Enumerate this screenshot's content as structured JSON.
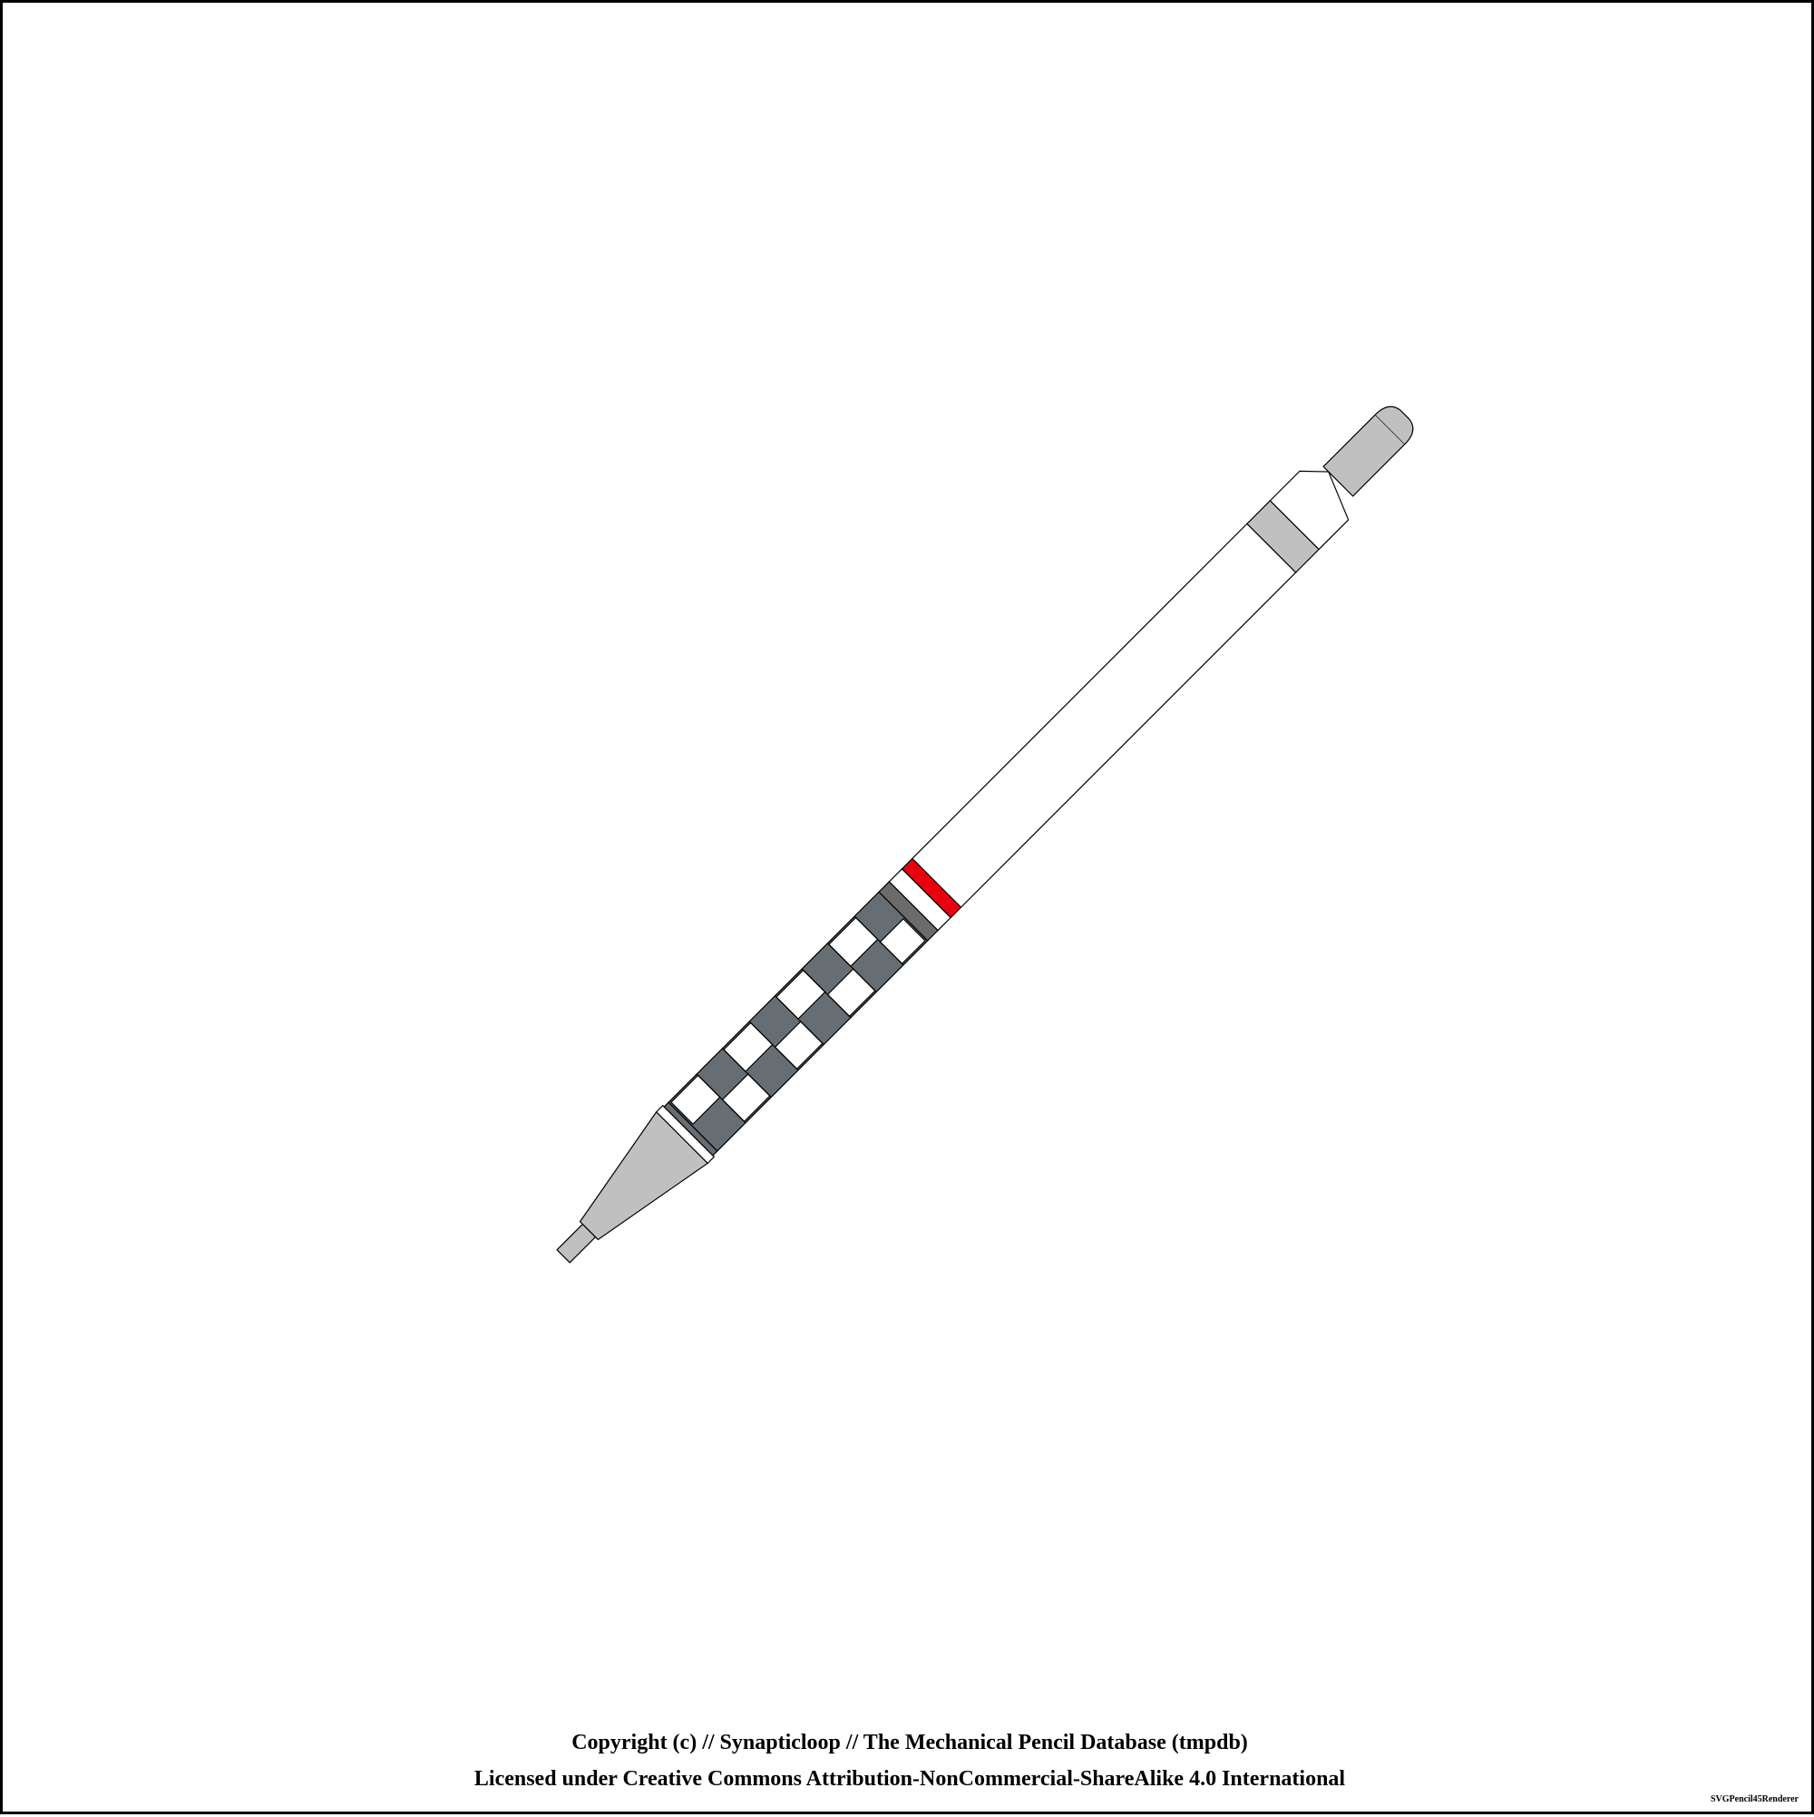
{
  "footer": {
    "copyright": "Copyright (c) // Synapticloop // The Mechanical Pencil Database (tmpdb)",
    "license": "Licensed under Creative Commons Attribution-NonCommercial-ShareAlike 4.0 International",
    "renderer": "SVGPencil45Renderer"
  },
  "colors": {
    "background": "#ffffff",
    "outline": "#000000",
    "barrel": "#ffffff",
    "metal": "#c0c0c0",
    "grip": "#666e73",
    "accent_red": "#e8000e",
    "band_dark": "#6b6b6b"
  }
}
